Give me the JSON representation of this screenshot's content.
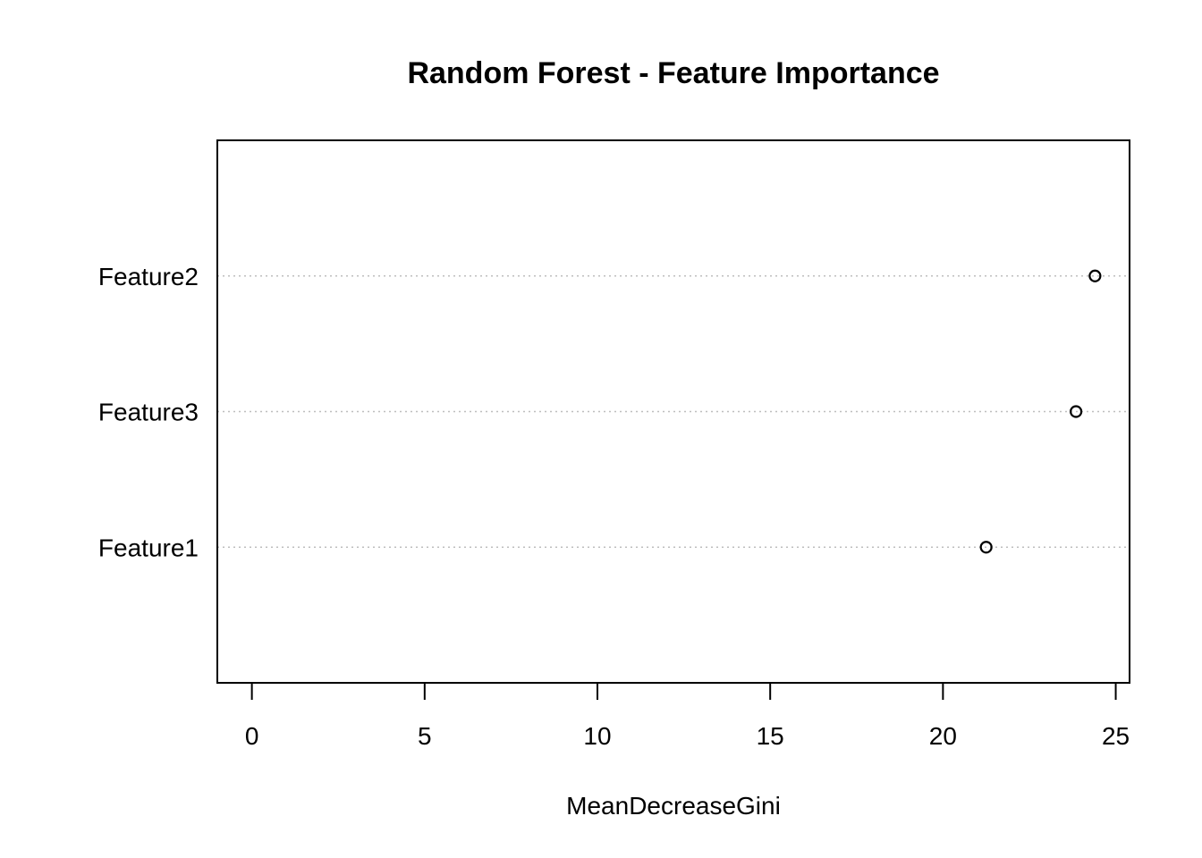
{
  "chart_data": {
    "type": "scatter",
    "title": "Random Forest - Feature Importance",
    "xlabel": "MeanDecreaseGini",
    "ylabel": "",
    "xlim": [
      -1,
      25.4
    ],
    "xticks": [
      0,
      5,
      10,
      15,
      20,
      25
    ],
    "categories": [
      "Feature2",
      "Feature3",
      "Feature1"
    ],
    "values": [
      24.4,
      23.85,
      21.25
    ],
    "grid": "dotted horizontal guide lines",
    "colors": {
      "points": "#000000",
      "guides": "#bebebe",
      "frame": "#000000"
    }
  }
}
